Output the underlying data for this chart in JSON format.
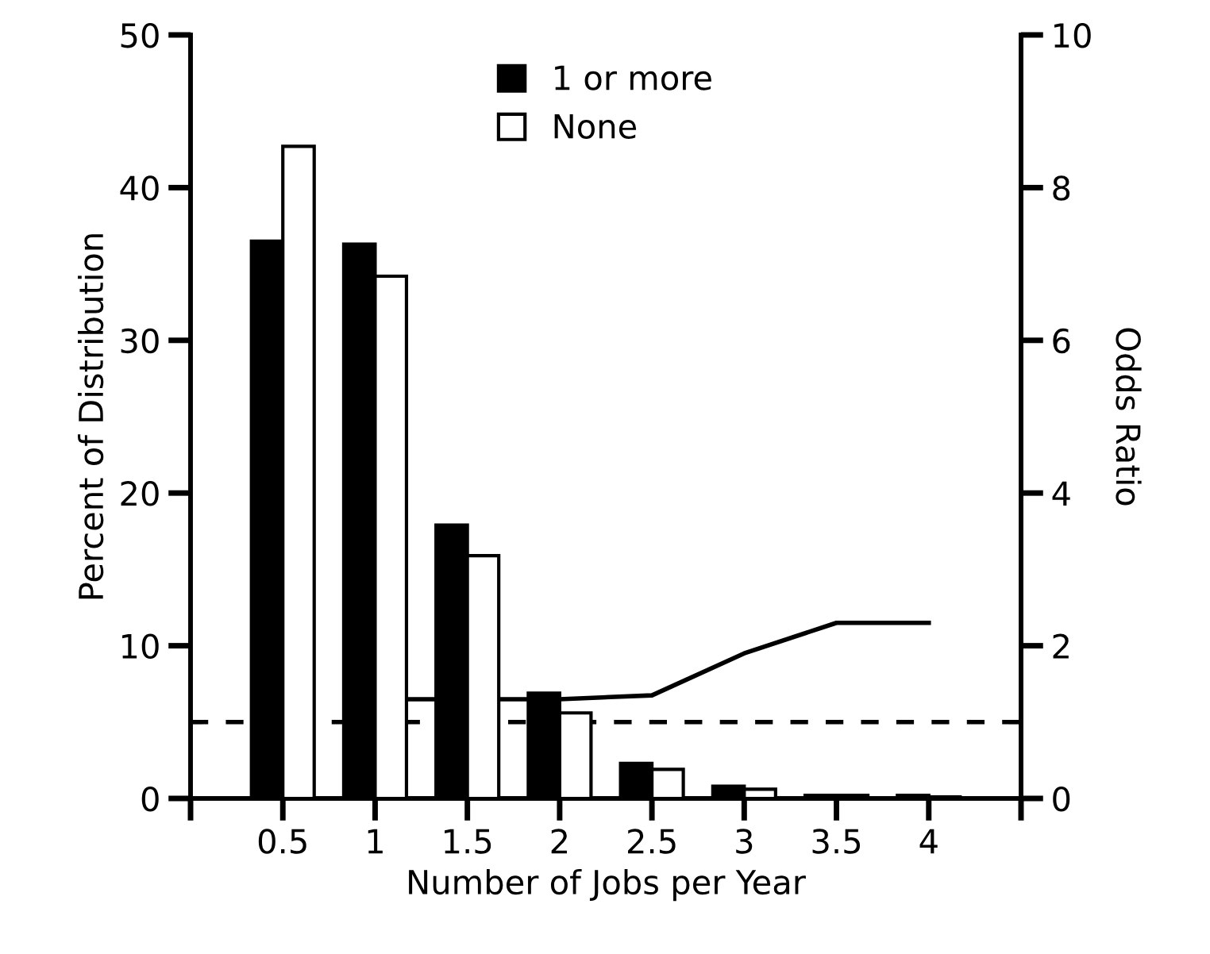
{
  "chart_data": {
    "type": "bar",
    "xlabel": "Number of Jobs per Year",
    "ylabel": "Percent of Distribution",
    "y2label": "Odds Ratio",
    "x": [
      0.5,
      1,
      1.5,
      2,
      2.5,
      3,
      3.5,
      4
    ],
    "xlim": [
      0,
      4.5
    ],
    "xticks": [
      {
        "value": 0,
        "label": null
      },
      0.5,
      1,
      1.5,
      2,
      2.5,
      3,
      3.5,
      4,
      {
        "value": 4.5,
        "label": null
      }
    ],
    "ylim": [
      0,
      50
    ],
    "yticks": [
      0,
      10,
      20,
      30,
      40,
      50
    ],
    "y2lim": [
      0,
      10
    ],
    "y2ticks": [
      0,
      2,
      4,
      6,
      8,
      10
    ],
    "series": [
      {
        "name": "1 or more",
        "color": "#000000",
        "values": [
          36.5,
          36.3,
          17.9,
          6.9,
          2.3,
          0.8,
          0.2,
          0.2
        ]
      },
      {
        "name": "None",
        "color": "#ffffff",
        "values": [
          42.7,
          34.2,
          15.9,
          5.6,
          1.9,
          0.6,
          0.2,
          0.1
        ]
      },
      {
        "type": "line",
        "axis": "y2",
        "color": "#000000",
        "x": [
          1,
          1.5,
          2,
          2.5,
          3,
          3.5,
          4
        ],
        "values": [
          1.3,
          1.3,
          1.3,
          1.35,
          1.9,
          2.3,
          2.3
        ]
      }
    ],
    "ref_lines": [
      {
        "axis": "y2",
        "value": 1,
        "label": null,
        "color": "#000000",
        "line_style": "dashed"
      }
    ],
    "legend": "top",
    "grid": false
  }
}
